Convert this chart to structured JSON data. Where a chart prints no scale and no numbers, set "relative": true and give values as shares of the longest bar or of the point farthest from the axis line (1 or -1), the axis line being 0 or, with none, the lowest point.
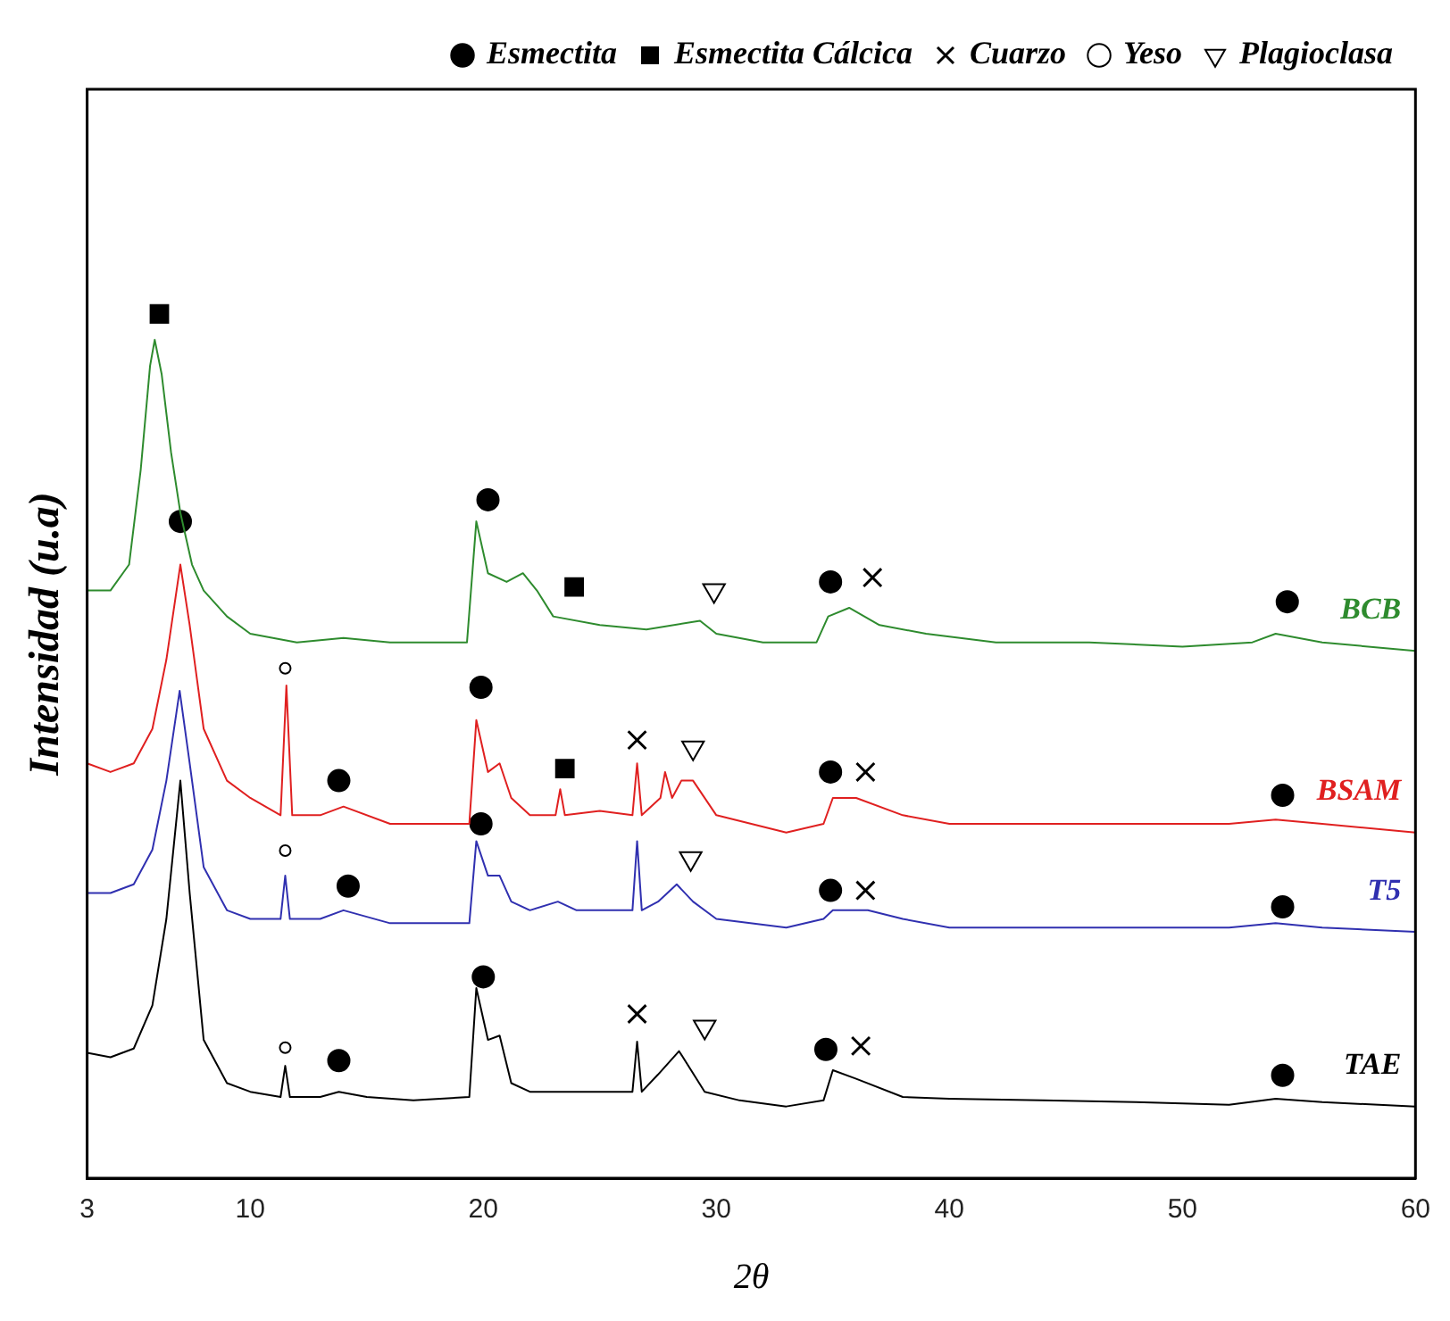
{
  "chart_data": {
    "type": "line",
    "xlabel": "2θ",
    "ylabel": "Intensidad (u.a)",
    "relative": true,
    "xlim": [
      3,
      60
    ],
    "xticks": [
      3,
      10,
      20,
      30,
      40,
      50,
      60
    ],
    "legend": "top right",
    "grid": false,
    "series": [
      {
        "name": "BCB",
        "color": "#2e8b2e",
        "x": [
          3,
          4,
          4.8,
          5.3,
          5.7,
          5.9,
          6.2,
          6.6,
          7,
          7.5,
          8,
          9,
          10,
          12,
          14,
          16,
          18,
          19.3,
          19.7,
          20.2,
          21,
          21.7,
          22.3,
          23,
          25,
          27,
          29.3,
          30,
          32,
          34.3,
          34.8,
          35.7,
          37,
          39,
          42,
          46,
          50,
          53,
          54,
          56,
          60
        ],
        "values": [
          0.68,
          0.68,
          0.71,
          0.82,
          0.94,
          0.97,
          0.93,
          0.84,
          0.77,
          0.71,
          0.68,
          0.65,
          0.63,
          0.62,
          0.625,
          0.62,
          0.62,
          0.62,
          0.76,
          0.7,
          0.69,
          0.7,
          0.68,
          0.65,
          0.64,
          0.635,
          0.645,
          0.63,
          0.62,
          0.62,
          0.65,
          0.66,
          0.64,
          0.63,
          0.62,
          0.62,
          0.615,
          0.62,
          0.63,
          0.62,
          0.61
        ]
      },
      {
        "name": "BSAM",
        "color": "#e02020",
        "x": [
          3,
          4,
          5,
          5.8,
          6.4,
          7,
          7.4,
          8,
          9,
          10,
          11.3,
          11.55,
          11.8,
          13,
          14,
          16,
          18,
          19.4,
          19.7,
          20.2,
          20.7,
          21.2,
          22,
          23.1,
          23.3,
          23.5,
          25,
          26.4,
          26.6,
          26.8,
          27.6,
          27.8,
          28.1,
          28.5,
          29,
          30,
          33,
          34.6,
          35,
          36,
          38,
          40,
          44,
          48,
          52,
          54,
          56,
          60
        ],
        "values": [
          0.48,
          0.47,
          0.48,
          0.52,
          0.6,
          0.71,
          0.64,
          0.52,
          0.46,
          0.44,
          0.42,
          0.57,
          0.42,
          0.42,
          0.43,
          0.41,
          0.41,
          0.41,
          0.53,
          0.47,
          0.48,
          0.44,
          0.42,
          0.42,
          0.45,
          0.42,
          0.425,
          0.42,
          0.48,
          0.42,
          0.44,
          0.47,
          0.44,
          0.46,
          0.46,
          0.42,
          0.4,
          0.41,
          0.44,
          0.44,
          0.42,
          0.41,
          0.41,
          0.41,
          0.41,
          0.415,
          0.41,
          0.4
        ]
      },
      {
        "name": "T5",
        "color": "#3030b0",
        "x": [
          3,
          4,
          5,
          5.8,
          6.4,
          6.97,
          7.4,
          8,
          9,
          10,
          11.3,
          11.5,
          11.7,
          13,
          14,
          16,
          18,
          19.4,
          19.7,
          20.2,
          20.7,
          21.2,
          22,
          23.2,
          24,
          26.4,
          26.6,
          26.8,
          27.5,
          28.3,
          29,
          30,
          33,
          34.6,
          35,
          36.5,
          38,
          40,
          44,
          48,
          52,
          54,
          56,
          60
        ],
        "values": [
          0.33,
          0.33,
          0.34,
          0.38,
          0.46,
          0.564,
          0.48,
          0.36,
          0.31,
          0.3,
          0.3,
          0.35,
          0.3,
          0.3,
          0.31,
          0.295,
          0.295,
          0.295,
          0.39,
          0.35,
          0.35,
          0.32,
          0.31,
          0.32,
          0.31,
          0.31,
          0.39,
          0.31,
          0.32,
          0.34,
          0.32,
          0.3,
          0.29,
          0.3,
          0.31,
          0.31,
          0.3,
          0.29,
          0.29,
          0.29,
          0.29,
          0.295,
          0.29,
          0.285
        ]
      },
      {
        "name": "TAE",
        "color": "#000000",
        "x": [
          3,
          4,
          5,
          5.8,
          6.4,
          7,
          7.4,
          8,
          9,
          10,
          11.3,
          11.5,
          11.7,
          13,
          13.8,
          15,
          17,
          19.4,
          19.7,
          20.2,
          20.7,
          21.2,
          22,
          24,
          26.4,
          26.6,
          26.8,
          27.5,
          28.4,
          29.5,
          31,
          33,
          34.6,
          35,
          36,
          38,
          40,
          44,
          48,
          52,
          54,
          56,
          60
        ],
        "values": [
          0.145,
          0.14,
          0.15,
          0.2,
          0.3,
          0.46,
          0.33,
          0.16,
          0.11,
          0.1,
          0.094,
          0.13,
          0.094,
          0.094,
          0.1,
          0.094,
          0.09,
          0.094,
          0.22,
          0.16,
          0.165,
          0.11,
          0.1,
          0.1,
          0.1,
          0.158,
          0.1,
          0.12,
          0.147,
          0.1,
          0.09,
          0.083,
          0.09,
          0.125,
          0.115,
          0.094,
          0.092,
          0.09,
          0.088,
          0.085,
          0.092,
          0.088,
          0.083
        ]
      },
      {
        "name": "Esmectita",
        "type": "scatter",
        "marker": "circle",
        "color": "#000000",
        "x": [
          7,
          20.2,
          34.9,
          54.5,
          13.8,
          19.9,
          34.9,
          54.3,
          14.2,
          19.9,
          34.9,
          54.3,
          13.8,
          20,
          34.7,
          54.3
        ],
        "values": [
          0.76,
          0.785,
          0.69,
          0.667,
          0.46,
          0.568,
          0.47,
          0.443,
          0.338,
          0.41,
          0.333,
          0.314,
          0.136,
          0.233,
          0.149,
          0.119
        ]
      },
      {
        "name": "Esmectita Cálcica",
        "type": "scatter",
        "marker": "square",
        "color": "#000000",
        "x": [
          6.1,
          23.9,
          23.5
        ],
        "values": [
          1,
          0.684,
          0.474
        ]
      },
      {
        "name": "Cuarzo",
        "type": "scatter",
        "marker": "cross",
        "color": "#000000",
        "x": [
          36.7,
          26.6,
          36.4,
          36.4,
          26.6,
          36.2
        ],
        "values": [
          0.695,
          0.507,
          0.47,
          0.333,
          0.19,
          0.153
        ]
      },
      {
        "name": "Yeso",
        "type": "scatter",
        "marker": "circle",
        "color": "#ffffff",
        "x": [
          11.5,
          11.5,
          11.5
        ],
        "values": [
          0.59,
          0.379,
          0.151
        ]
      },
      {
        "name": "Plagioclasa",
        "type": "scatter",
        "marker": "triangle",
        "color": "#ffffff",
        "x": [
          29.9,
          29,
          28.9,
          29.5
        ],
        "values": [
          0.68,
          0.498,
          0.37,
          0.175
        ]
      }
    ]
  }
}
